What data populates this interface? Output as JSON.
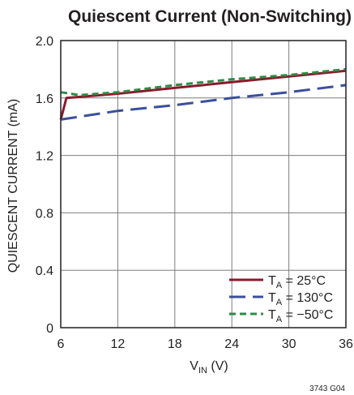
{
  "chart_data": {
    "type": "line",
    "title": "Quiescent Current (Non-Switching)",
    "xlabel_main": "V",
    "xlabel_sub": "IN",
    "xlabel_unit": " (V)",
    "ylabel": "QUIESCENT CURRENT (mA)",
    "xlim": [
      6,
      36
    ],
    "ylim": [
      0,
      2.0
    ],
    "x_ticks": [
      "6",
      "12",
      "18",
      "24",
      "30",
      "36"
    ],
    "y_ticks": [
      "0",
      "0.4",
      "0.8",
      "1.2",
      "1.6",
      "2.0"
    ],
    "grid": true,
    "legend_position": "bottom-right",
    "figure_code": "3743 G04",
    "series": [
      {
        "name": "T_A = 25°C",
        "legend_main": "T",
        "legend_sub": "A",
        "legend_rest": " = 25°C",
        "color": "#8b1a2b",
        "dash": "solid",
        "x": [
          6.0,
          6.6,
          12,
          18,
          24,
          30,
          36
        ],
        "y": [
          1.45,
          1.6,
          1.63,
          1.67,
          1.71,
          1.75,
          1.79
        ]
      },
      {
        "name": "T_A = 130°C",
        "legend_main": "T",
        "legend_sub": "A",
        "legend_rest": " = 130°C",
        "color": "#3b4f9c",
        "dash": "long-dash",
        "x": [
          6.0,
          12,
          18,
          24,
          30,
          36
        ],
        "y": [
          1.45,
          1.51,
          1.55,
          1.6,
          1.64,
          1.69
        ]
      },
      {
        "name": "T_A = −50°C",
        "legend_main": "T",
        "legend_sub": "A",
        "legend_rest": " = −50°C",
        "color": "#2e8b45",
        "dash": "short-dash",
        "x": [
          6.0,
          8,
          12,
          18,
          24,
          30,
          36
        ],
        "y": [
          1.64,
          1.62,
          1.64,
          1.69,
          1.73,
          1.76,
          1.8
        ]
      }
    ]
  }
}
